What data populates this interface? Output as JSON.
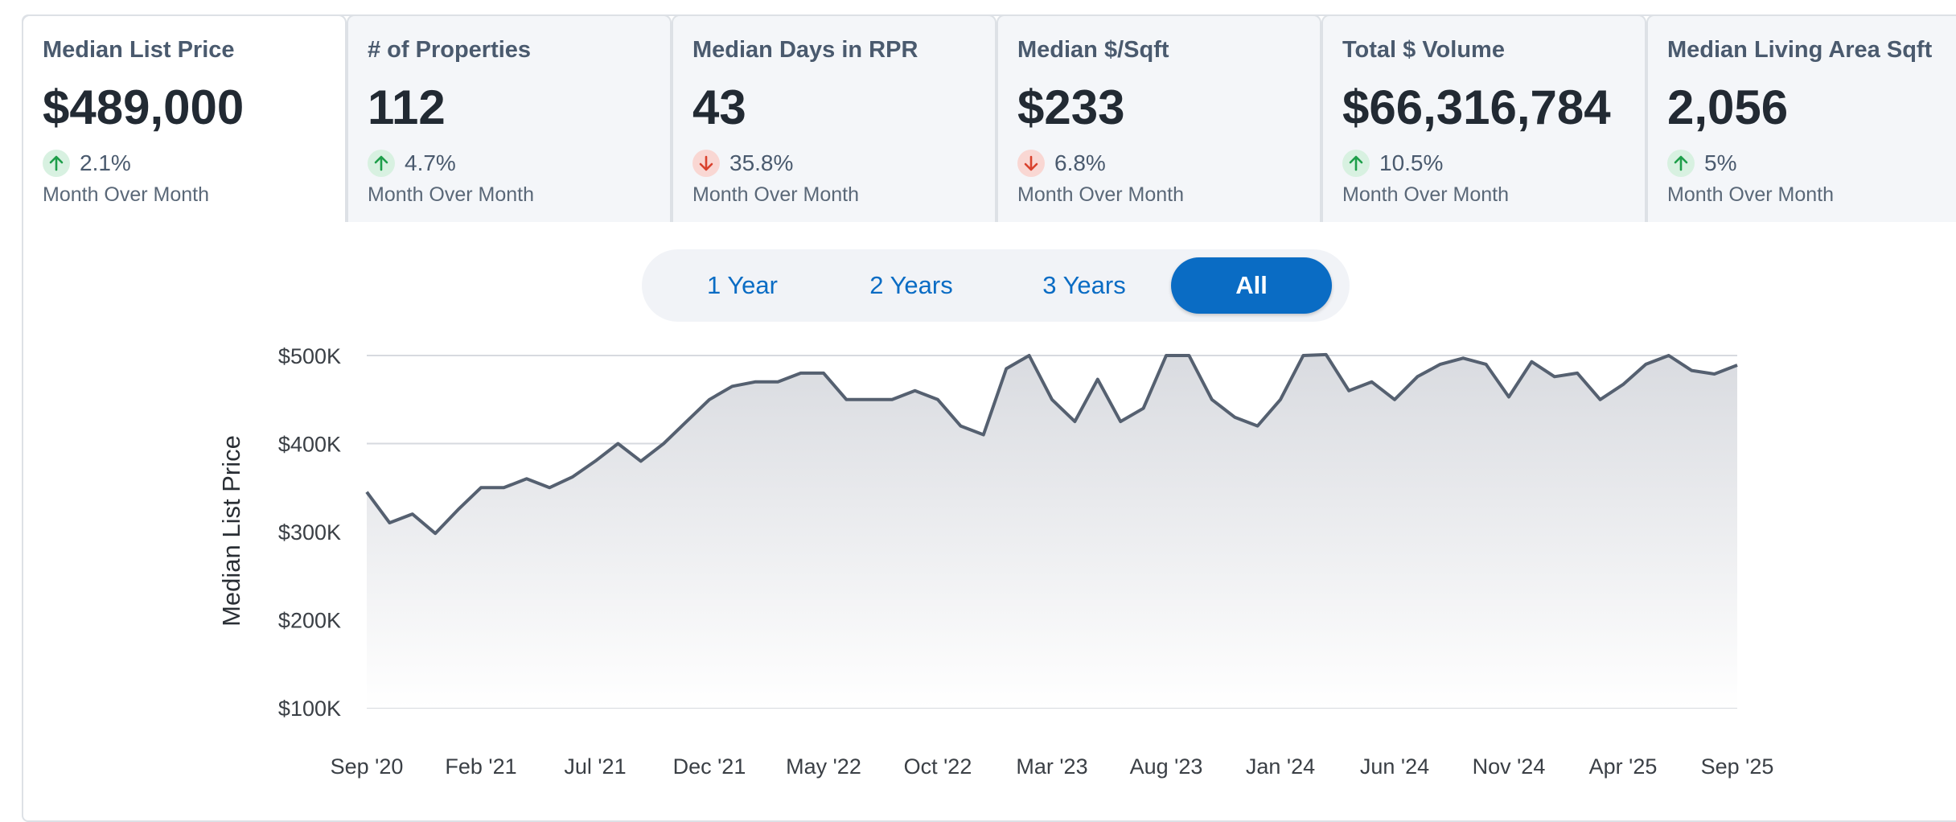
{
  "cards": [
    {
      "title": "Median List Price",
      "value": "$489,000",
      "change": "2.1%",
      "direction": "up",
      "period": "Month Over Month",
      "active": true
    },
    {
      "title": "# of Properties",
      "value": "112",
      "change": "4.7%",
      "direction": "up",
      "period": "Month Over Month",
      "active": false
    },
    {
      "title": "Median Days in RPR",
      "value": "43",
      "change": "35.8%",
      "direction": "down",
      "period": "Month Over Month",
      "active": false
    },
    {
      "title": "Median $/Sqft",
      "value": "$233",
      "change": "6.8%",
      "direction": "down",
      "period": "Month Over Month",
      "active": false
    },
    {
      "title": "Total $ Volume",
      "value": "$66,316,784",
      "change": "10.5%",
      "direction": "up",
      "period": "Month Over Month",
      "active": false
    },
    {
      "title": "Median Living Area Sqft",
      "value": "2,056",
      "change": "5%",
      "direction": "up",
      "period": "Month Over Month",
      "active": false
    }
  ],
  "range_toggle": {
    "options": [
      "1 Year",
      "2 Years",
      "3 Years",
      "All"
    ],
    "selected": "All"
  },
  "colors": {
    "line": "#556070",
    "accent": "#0a6cc4",
    "up": "#1e9e4a",
    "down": "#d9422e"
  },
  "chart_data": {
    "type": "area",
    "title": "",
    "xlabel": "",
    "ylabel": "Median List Price",
    "x_tick_labels": [
      "Sep '20",
      "Feb '21",
      "Jul '21",
      "Dec '21",
      "May '22",
      "Oct '22",
      "Mar '23",
      "Aug '23",
      "Jan '24",
      "Jun '24",
      "Nov '24",
      "Apr '25",
      "Sep '25"
    ],
    "y_tick_labels": [
      "$100K",
      "$200K",
      "$300K",
      "$400K",
      "$500K"
    ],
    "y_ticks": [
      100000,
      200000,
      300000,
      400000,
      500000
    ],
    "ylim": [
      100000,
      500000
    ],
    "grid": true,
    "legend": "none",
    "x_start": "2020-09",
    "x_end": "2025-09",
    "series": [
      {
        "values": [
          345000,
          310000,
          320000,
          298000,
          325000,
          350000,
          350000,
          360000,
          350000,
          362000,
          380000,
          400000,
          380000,
          400000,
          425000,
          450000,
          465000,
          470000,
          470000,
          480000,
          480000,
          450000,
          450000,
          450000,
          460000,
          450000,
          420000,
          410000,
          485000,
          500000,
          450000,
          425000,
          473000,
          425000,
          440000,
          500000,
          500000,
          450000,
          430000,
          420000,
          450000,
          500000,
          501000,
          460000,
          470000,
          450000,
          476000,
          490000,
          497000,
          490000,
          453000,
          493000,
          476000,
          480000,
          450000,
          467000,
          490000,
          500000,
          483000,
          479000,
          489000
        ]
      }
    ]
  }
}
